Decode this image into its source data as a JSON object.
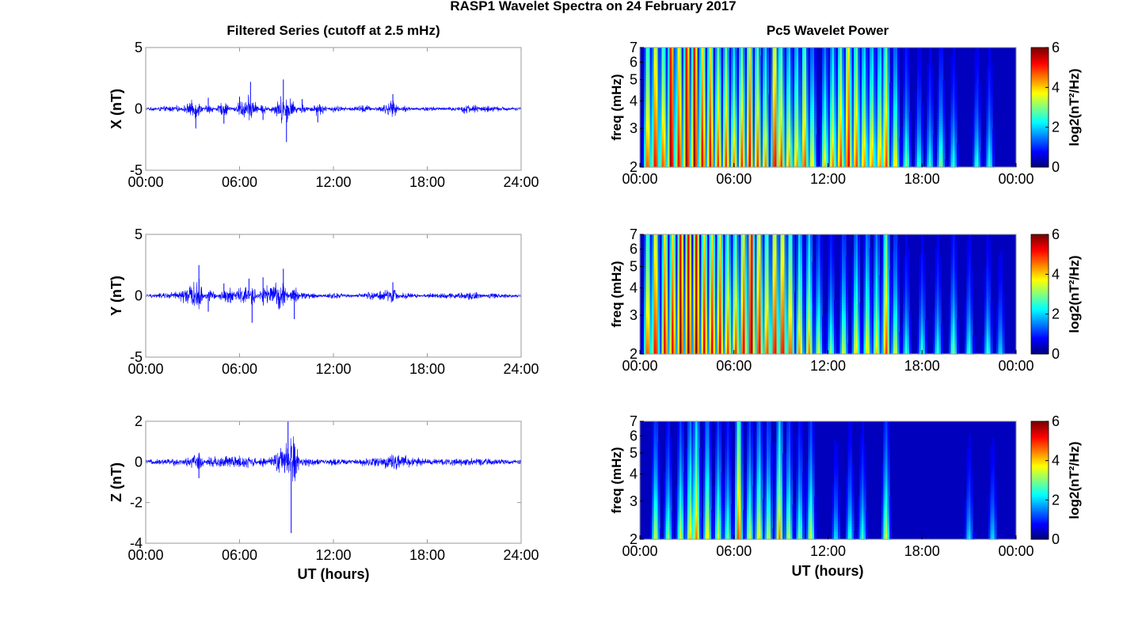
{
  "figure_title": "RASP1 Wavelet Spectra on 24 February 2017",
  "left_column_title": "Filtered Series (cutoff at 2.5 mHz)",
  "right_column_title": "Pc5 Wavelet Power",
  "x_axis_label": "UT (hours)",
  "chart_data": [
    {
      "type": "line",
      "panel": "X",
      "ylabel": "X (nT)",
      "xlabel": "",
      "ylim": [
        -5,
        5
      ],
      "yticks": [
        "-5",
        "0",
        "5"
      ],
      "xlim": [
        0,
        24
      ],
      "xticks": [
        "00:00",
        "06:00",
        "12:00",
        "18:00",
        "24:00"
      ],
      "series": [
        {
          "color": "#0000ff",
          "x": [
            0,
            2,
            3.2,
            4,
            5,
            6,
            6.7,
            7.5,
            8.8,
            9,
            10,
            11,
            12,
            14,
            15.8,
            16.5,
            18,
            20,
            20.3,
            22,
            24
          ],
          "values": [
            0,
            0.4,
            -1.6,
            0.9,
            -1.2,
            1,
            2.2,
            -0.9,
            2.4,
            -2.7,
            0.8,
            -1.1,
            0.5,
            -0.6,
            1.2,
            -0.4,
            0.3,
            -0.3,
            0.6,
            0.3,
            0
          ]
        }
      ],
      "grid": false
    },
    {
      "type": "line",
      "panel": "Y",
      "ylabel": "Y (nT)",
      "xlabel": "",
      "ylim": [
        -5,
        5
      ],
      "yticks": [
        "-5",
        "0",
        "5"
      ],
      "xlim": [
        0,
        24
      ],
      "xticks": [
        "00:00",
        "06:00",
        "12:00",
        "18:00",
        "24:00"
      ],
      "series": [
        {
          "color": "#0000ff",
          "x": [
            0,
            2,
            3.4,
            4,
            5,
            6.6,
            6.8,
            7.5,
            8.8,
            9.5,
            10,
            12,
            14,
            15.8,
            16.5,
            18,
            21.3,
            22,
            24
          ],
          "values": [
            0,
            0.5,
            2.5,
            -1.3,
            1,
            1.4,
            -2.2,
            1.5,
            2.2,
            -1.9,
            0.6,
            -0.4,
            0.3,
            1.1,
            -0.5,
            0.2,
            0.5,
            -0.3,
            0
          ]
        }
      ],
      "grid": false
    },
    {
      "type": "line",
      "panel": "Z",
      "ylabel": "Z (nT)",
      "xlabel": "UT (hours)",
      "ylim": [
        -4,
        2
      ],
      "yticks": [
        "-4",
        "-2",
        "0",
        "2"
      ],
      "xlim": [
        0,
        24
      ],
      "xticks": [
        "00:00",
        "06:00",
        "12:00",
        "18:00",
        "24:00"
      ],
      "series": [
        {
          "color": "#0000ff",
          "x": [
            0,
            2,
            3.4,
            4,
            6.7,
            7.5,
            9.1,
            9.3,
            10,
            12,
            15.9,
            18,
            20,
            24
          ],
          "values": [
            0,
            0.2,
            -0.8,
            0.4,
            0.5,
            -0.4,
            2,
            -3.5,
            0.4,
            -0.2,
            0.6,
            0.1,
            0.2,
            0
          ]
        }
      ],
      "grid": false
    },
    {
      "type": "heatmap",
      "panel": "X",
      "ylabel": "freq (mHz)",
      "xlabel": "",
      "y_scale": "log",
      "ylim": [
        2,
        7
      ],
      "yticks": [
        "2",
        "3",
        "4",
        "5",
        "6",
        "7"
      ],
      "xlim": [
        0,
        24
      ],
      "xticks": [
        "00:00",
        "06:00",
        "12:00",
        "18:00",
        "00:00"
      ],
      "colorbar": {
        "label": "log2(nT²/Hz)",
        "range": [
          0,
          6
        ],
        "ticks": [
          "0",
          "2",
          "4",
          "6"
        ],
        "colormap": "jet"
      },
      "activity": [
        {
          "t": 0.5,
          "p": 5.0
        },
        {
          "t": 1.0,
          "p": 5.5
        },
        {
          "t": 1.5,
          "p": 5.0
        },
        {
          "t": 2.0,
          "p": 6.0
        },
        {
          "t": 2.5,
          "p": 5.5
        },
        {
          "t": 3.0,
          "p": 6.0
        },
        {
          "t": 3.5,
          "p": 6.0
        },
        {
          "t": 4.0,
          "p": 5.5
        },
        {
          "t": 4.5,
          "p": 5.5
        },
        {
          "t": 5.0,
          "p": 5.0
        },
        {
          "t": 5.5,
          "p": 5.0
        },
        {
          "t": 6.0,
          "p": 4.5
        },
        {
          "t": 6.5,
          "p": 5.0
        },
        {
          "t": 7.0,
          "p": 5.5
        },
        {
          "t": 7.5,
          "p": 5.0
        },
        {
          "t": 8.0,
          "p": 4.5
        },
        {
          "t": 8.6,
          "p": 5.5
        },
        {
          "t": 9.0,
          "p": 5.0
        },
        {
          "t": 9.5,
          "p": 4.5
        },
        {
          "t": 10.0,
          "p": 4.5
        },
        {
          "t": 10.5,
          "p": 5.0
        },
        {
          "t": 11.0,
          "p": 4.0
        },
        {
          "t": 11.8,
          "p": 4.0
        },
        {
          "t": 12.3,
          "p": 4.5
        },
        {
          "t": 12.8,
          "p": 5.0
        },
        {
          "t": 13.3,
          "p": 5.5
        },
        {
          "t": 13.8,
          "p": 5.0
        },
        {
          "t": 14.3,
          "p": 4.5
        },
        {
          "t": 14.8,
          "p": 4.5
        },
        {
          "t": 15.3,
          "p": 4.5
        },
        {
          "t": 15.7,
          "p": 5.0
        },
        {
          "t": 16.3,
          "p": 4.0
        },
        {
          "t": 17.0,
          "p": 3.0
        },
        {
          "t": 17.8,
          "p": 2.5
        },
        {
          "t": 18.5,
          "p": 2.5
        },
        {
          "t": 19.2,
          "p": 3.0
        },
        {
          "t": 20.0,
          "p": 2.5
        },
        {
          "t": 21.5,
          "p": 2.5
        },
        {
          "t": 22.3,
          "p": 2.5
        }
      ]
    },
    {
      "type": "heatmap",
      "panel": "Y",
      "ylabel": "freq (mHz)",
      "xlabel": "",
      "y_scale": "log",
      "ylim": [
        2,
        7
      ],
      "yticks": [
        "2",
        "3",
        "4",
        "5",
        "6",
        "7"
      ],
      "xlim": [
        0,
        24
      ],
      "xticks": [
        "00:00",
        "06:00",
        "12:00",
        "18:00",
        "00:00"
      ],
      "colorbar": {
        "label": "log2(nT²/Hz)",
        "range": [
          0,
          6
        ],
        "ticks": [
          "0",
          "2",
          "4",
          "6"
        ],
        "colormap": "jet"
      },
      "activity": [
        {
          "t": 0.5,
          "p": 5.0
        },
        {
          "t": 1.0,
          "p": 5.5
        },
        {
          "t": 1.6,
          "p": 5.5
        },
        {
          "t": 2.1,
          "p": 5.5
        },
        {
          "t": 2.6,
          "p": 6.0
        },
        {
          "t": 3.1,
          "p": 6.0
        },
        {
          "t": 3.6,
          "p": 6.0
        },
        {
          "t": 4.1,
          "p": 5.5
        },
        {
          "t": 4.6,
          "p": 5.5
        },
        {
          "t": 5.1,
          "p": 5.5
        },
        {
          "t": 5.6,
          "p": 5.0
        },
        {
          "t": 6.1,
          "p": 5.0
        },
        {
          "t": 6.6,
          "p": 5.5
        },
        {
          "t": 7.1,
          "p": 6.0
        },
        {
          "t": 7.6,
          "p": 5.5
        },
        {
          "t": 8.1,
          "p": 5.0
        },
        {
          "t": 8.6,
          "p": 5.5
        },
        {
          "t": 9.1,
          "p": 5.5
        },
        {
          "t": 9.6,
          "p": 5.0
        },
        {
          "t": 10.2,
          "p": 4.5
        },
        {
          "t": 10.8,
          "p": 4.5
        },
        {
          "t": 11.4,
          "p": 3.5
        },
        {
          "t": 12.2,
          "p": 3.0
        },
        {
          "t": 13.0,
          "p": 3.5
        },
        {
          "t": 13.8,
          "p": 4.0
        },
        {
          "t": 14.5,
          "p": 4.0
        },
        {
          "t": 15.1,
          "p": 4.0
        },
        {
          "t": 15.7,
          "p": 5.0
        },
        {
          "t": 16.3,
          "p": 3.5
        },
        {
          "t": 17.0,
          "p": 2.5
        },
        {
          "t": 18.0,
          "p": 2.5
        },
        {
          "t": 19.0,
          "p": 2.5
        },
        {
          "t": 20.0,
          "p": 3.0
        },
        {
          "t": 21.0,
          "p": 2.5
        },
        {
          "t": 22.2,
          "p": 2.5
        },
        {
          "t": 23.0,
          "p": 2.0
        }
      ]
    },
    {
      "type": "heatmap",
      "panel": "Z",
      "ylabel": "freq (mHz)",
      "xlabel": "UT (hours)",
      "y_scale": "log",
      "ylim": [
        2,
        7
      ],
      "yticks": [
        "2",
        "3",
        "4",
        "5",
        "6",
        "7"
      ],
      "xlim": [
        0,
        24
      ],
      "xticks": [
        "00:00",
        "06:00",
        "12:00",
        "18:00",
        "00:00"
      ],
      "colorbar": {
        "label": "log2(nT²/Hz)",
        "range": [
          0,
          6
        ],
        "ticks": [
          "0",
          "2",
          "4",
          "6"
        ],
        "colormap": "jet"
      },
      "activity": [
        {
          "t": 1.0,
          "p": 3.5
        },
        {
          "t": 1.8,
          "p": 3.0
        },
        {
          "t": 2.6,
          "p": 3.5
        },
        {
          "t": 3.2,
          "p": 4.0
        },
        {
          "t": 3.6,
          "p": 4.5
        },
        {
          "t": 4.3,
          "p": 4.0
        },
        {
          "t": 5.0,
          "p": 3.5
        },
        {
          "t": 5.6,
          "p": 3.0
        },
        {
          "t": 6.3,
          "p": 5.0
        },
        {
          "t": 7.0,
          "p": 3.5
        },
        {
          "t": 7.6,
          "p": 4.0
        },
        {
          "t": 8.2,
          "p": 3.5
        },
        {
          "t": 8.9,
          "p": 4.5
        },
        {
          "t": 9.5,
          "p": 3.5
        },
        {
          "t": 10.2,
          "p": 3.0
        },
        {
          "t": 10.9,
          "p": 3.5
        },
        {
          "t": 12.5,
          "p": 2.0
        },
        {
          "t": 13.4,
          "p": 2.5
        },
        {
          "t": 14.2,
          "p": 2.5
        },
        {
          "t": 15.7,
          "p": 3.5
        },
        {
          "t": 21.0,
          "p": 2.0
        },
        {
          "t": 22.5,
          "p": 2.0
        }
      ]
    }
  ]
}
